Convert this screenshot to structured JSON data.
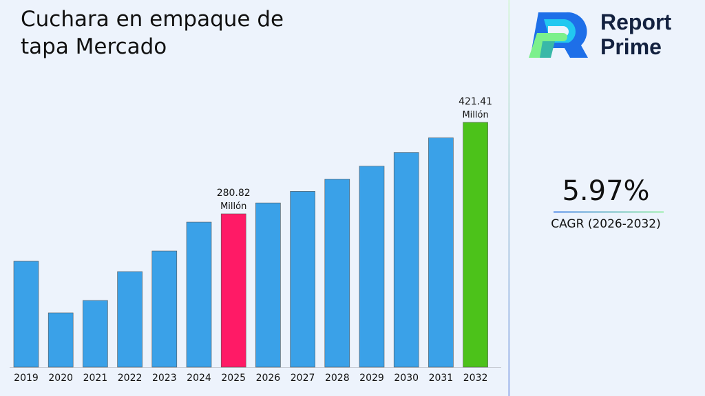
{
  "chart_data": {
    "type": "bar",
    "title": "Cuchara en empaque de tapa Mercado",
    "categories": [
      "2019",
      "2020",
      "2021",
      "2022",
      "2023",
      "2024",
      "2025",
      "2026",
      "2027",
      "2028",
      "2029",
      "2030",
      "2031",
      "2032"
    ],
    "values": [
      207.9,
      128.6,
      147.6,
      192.0,
      223.7,
      268.1,
      280.82,
      297.59,
      315.36,
      334.19,
      354.14,
      375.28,
      397.68,
      421.41
    ],
    "ylim": [
      45,
      440
    ],
    "grid": false,
    "colors": {
      "default": "#3aa1e8",
      "highlight_2025": "#ff1a66",
      "highlight_2032": "#4cc21a"
    },
    "annotations": [
      {
        "category": "2025",
        "value": "280.82",
        "unit": "Millón"
      },
      {
        "category": "2032",
        "value": "421.41",
        "unit": "Millón"
      }
    ]
  },
  "brand": {
    "line1": "Report",
    "line2": "Prime"
  },
  "cagr": {
    "value": "5.97%",
    "label": "CAGR (2026-2032)"
  }
}
